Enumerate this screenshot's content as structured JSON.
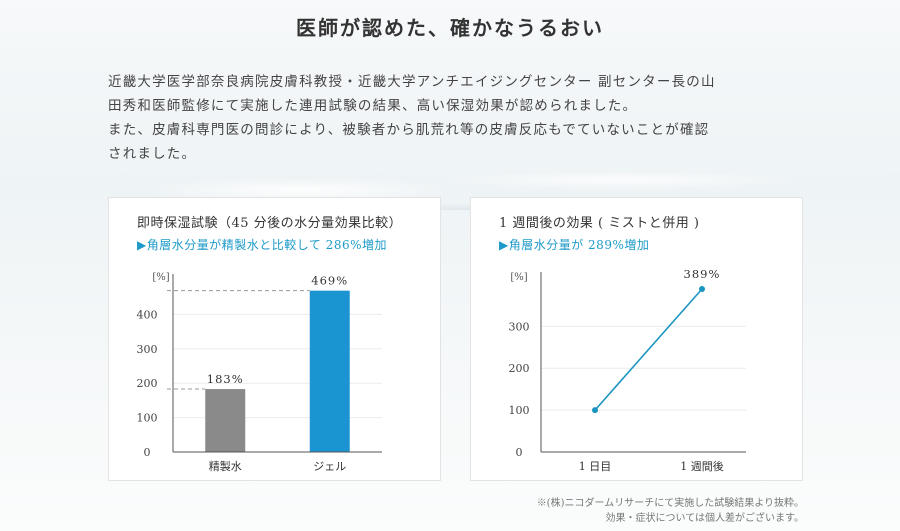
{
  "headline": "医師が認めた、確かなうるおい",
  "intro": {
    "line1": "近畿大学医学部奈良病院皮膚科教授・近畿大学アンチエイジングセンター 副センター長の山",
    "line2": "田秀和医師監修にて実施した連用試験の結果、高い保湿効果が認められました。",
    "line3": "また、皮膚科専門医の問診により、被験者から肌荒れ等の皮膚反応もでていないことが確認",
    "line4": "されました。"
  },
  "chart_data": [
    {
      "type": "bar",
      "title": "即時保湿試験（45 分後の水分量効果比較）",
      "subtitle": "▶角層水分量が精製水と比較して 286%増加",
      "unit": "[%]",
      "categories": [
        "精製水",
        "ジェル"
      ],
      "values": [
        183,
        469
      ],
      "value_labels": [
        "183%",
        "469%"
      ],
      "colors": [
        "#8a8a8a",
        "#1a95d2"
      ],
      "yticks": [
        0,
        100,
        200,
        300,
        400
      ],
      "ylim": [
        0,
        500
      ],
      "grid": true
    },
    {
      "type": "line",
      "title": "1 週間後の効果 ( ミストと併用 )",
      "subtitle": "▶角層水分量が 289%増加",
      "unit": "[%]",
      "categories": [
        "1 日目",
        "1 週間後"
      ],
      "values": [
        100,
        389
      ],
      "value_labels": [
        "",
        "389%"
      ],
      "color": "#1a95c0",
      "yticks": [
        0,
        100,
        200,
        300
      ],
      "ylim": [
        0,
        420
      ],
      "grid": true
    }
  ],
  "footnote": {
    "line1": "※(株)ニコダームリサーチにて実施した試験結果より抜粋。",
    "line2": "効果・症状については個人差がございます。"
  }
}
